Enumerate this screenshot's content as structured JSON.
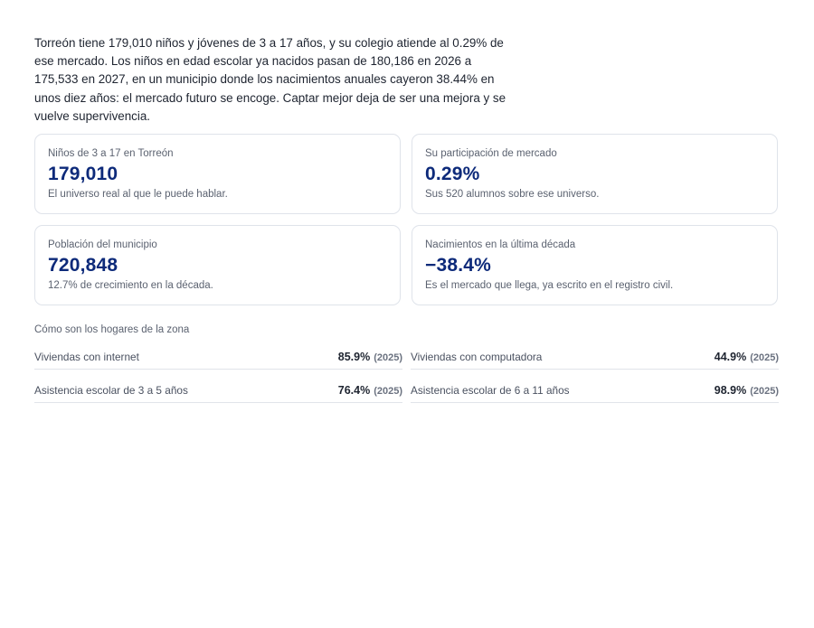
{
  "intro": "Torreón tiene 179,010 niños y jóvenes de 3 a 17 años, y su colegio atiende al 0.29% de ese mercado. Los niños en edad escolar ya nacidos pasan de 180,186 en 2026 a 175,533 en 2027, en un municipio donde los nacimientos anuales cayeron 38.44% en unos diez años: el mercado futuro se encoge. Captar mejor deja de ser una mejora y se vuelve supervivencia.",
  "cards": [
    {
      "label": "Niños de 3 a 17 en Torreón",
      "value": "179,010",
      "note": "El universo real al que le puede hablar."
    },
    {
      "label": "Su participación de mercado",
      "value": "0.29%",
      "note": "Sus 520 alumnos sobre ese universo."
    },
    {
      "label": "Población del municipio",
      "value": "720,848",
      "note": "12.7% de crecimiento en la década."
    },
    {
      "label": "Nacimientos en la última década",
      "value": "−38.4%",
      "note": "Es el mercado que llega, ya escrito en el registro civil."
    }
  ],
  "households": {
    "title": "Cómo son los hogares de la zona",
    "rows": [
      {
        "label": "Viviendas con internet",
        "value": "85.9%",
        "year": "(2025)"
      },
      {
        "label": "Viviendas con computadora",
        "value": "44.9%",
        "year": "(2025)"
      },
      {
        "label": "Asistencia escolar de 3 a 5 años",
        "value": "76.4%",
        "year": "(2025)"
      },
      {
        "label": "Asistencia escolar de 6 a 11 años",
        "value": "98.9%",
        "year": "(2025)"
      }
    ]
  },
  "colors": {
    "accent": "#0d2a7a",
    "border": "#dfe3ea",
    "muted": "#5b6270"
  }
}
